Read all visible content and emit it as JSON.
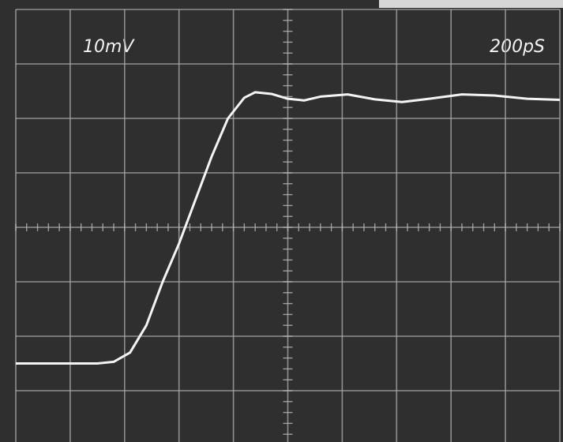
{
  "chart_data": {
    "type": "line",
    "y_scale": "10mV",
    "x_scale": "200pS",
    "x": [
      0,
      1.5,
      1.8,
      2.1,
      2.4,
      2.7,
      3.0,
      3.3,
      3.6,
      3.9,
      4.2,
      4.4,
      4.7,
      5.0,
      5.3,
      5.6,
      6.1,
      6.6,
      7.1,
      7.6,
      8.2,
      8.8,
      9.4,
      10
    ],
    "values": [
      1.5,
      1.5,
      1.53,
      1.7,
      2.2,
      3.0,
      3.7,
      4.5,
      5.3,
      6.0,
      6.38,
      6.48,
      6.45,
      6.36,
      6.33,
      6.4,
      6.44,
      6.35,
      6.3,
      6.36,
      6.44,
      6.42,
      6.36,
      6.34
    ],
    "color": "#f4f4f4",
    "xlim": [
      0,
      10
    ],
    "ylim": [
      0,
      8
    ],
    "xticks": [
      0,
      1,
      2,
      3,
      4,
      5,
      6,
      7,
      8,
      9,
      10
    ],
    "yticks": [
      0,
      1,
      2,
      3,
      4,
      5,
      6,
      7,
      8
    ],
    "grid": true
  }
}
